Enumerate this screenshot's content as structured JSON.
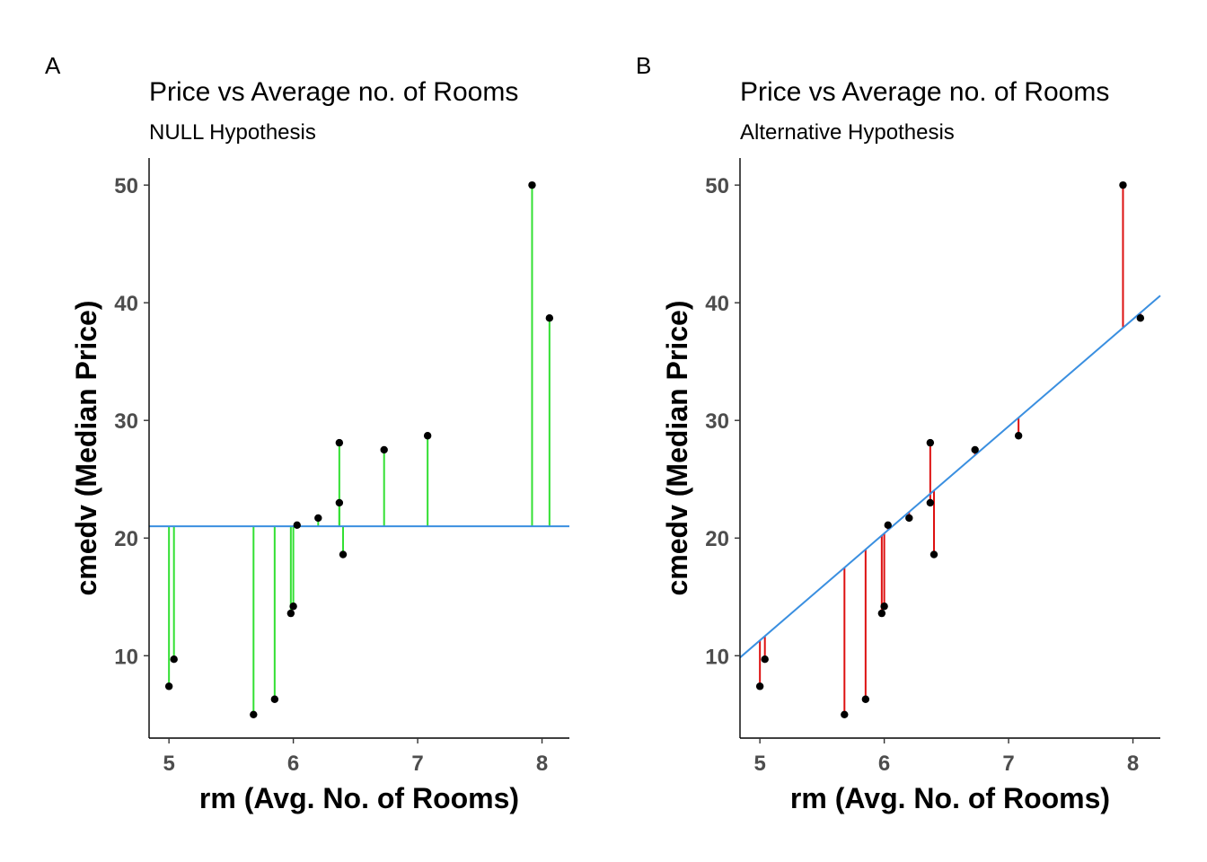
{
  "chart_data": [
    {
      "type": "scatter",
      "panel_tag": "A",
      "title": "Price vs Average no. of Rooms",
      "subtitle": "NULL Hypothesis",
      "xlabel": "rm (Avg. No. of Rooms)",
      "ylabel": "cmedv (Median Price)",
      "xlim": [
        4.84,
        8.22
      ],
      "ylim": [
        3.0,
        52.3
      ],
      "xticks": [
        5,
        6,
        7,
        8
      ],
      "yticks": [
        10,
        20,
        30,
        40,
        50
      ],
      "grid": false,
      "fit": {
        "type": "mean",
        "value": 21.0,
        "color": "#3a8fe0"
      },
      "residual_color": "#33e033",
      "point_color": "#000000",
      "points": [
        {
          "x": 5.0,
          "y": 7.4
        },
        {
          "x": 5.04,
          "y": 9.7
        },
        {
          "x": 5.68,
          "y": 5.0
        },
        {
          "x": 5.85,
          "y": 6.3
        },
        {
          "x": 5.98,
          "y": 13.6
        },
        {
          "x": 6.0,
          "y": 14.2
        },
        {
          "x": 6.03,
          "y": 21.1
        },
        {
          "x": 6.2,
          "y": 21.7
        },
        {
          "x": 6.37,
          "y": 28.1
        },
        {
          "x": 6.37,
          "y": 23.0
        },
        {
          "x": 6.4,
          "y": 18.6
        },
        {
          "x": 6.73,
          "y": 27.5
        },
        {
          "x": 7.08,
          "y": 28.7
        },
        {
          "x": 7.92,
          "y": 50.0
        },
        {
          "x": 8.06,
          "y": 38.7
        }
      ]
    },
    {
      "type": "scatter",
      "panel_tag": "B",
      "title": "Price vs Average no. of Rooms",
      "subtitle": "Alternative Hypothesis",
      "xlabel": "rm (Avg. No. of Rooms)",
      "ylabel": "cmedv (Median Price)",
      "xlim": [
        4.84,
        8.22
      ],
      "ylim": [
        3.0,
        52.3
      ],
      "xticks": [
        5,
        6,
        7,
        8
      ],
      "yticks": [
        10,
        20,
        30,
        40,
        50
      ],
      "grid": false,
      "fit": {
        "type": "linear",
        "intercept": -34.2,
        "slope": 9.1,
        "color": "#3a8fe0"
      },
      "residual_color": "#dd1111",
      "point_color": "#000000",
      "points": [
        {
          "x": 5.0,
          "y": 7.4
        },
        {
          "x": 5.04,
          "y": 9.7
        },
        {
          "x": 5.68,
          "y": 5.0
        },
        {
          "x": 5.85,
          "y": 6.3
        },
        {
          "x": 5.98,
          "y": 13.6
        },
        {
          "x": 6.0,
          "y": 14.2
        },
        {
          "x": 6.03,
          "y": 21.1
        },
        {
          "x": 6.2,
          "y": 21.7
        },
        {
          "x": 6.37,
          "y": 28.1
        },
        {
          "x": 6.37,
          "y": 23.0
        },
        {
          "x": 6.4,
          "y": 18.6
        },
        {
          "x": 6.73,
          "y": 27.5
        },
        {
          "x": 7.08,
          "y": 28.7
        },
        {
          "x": 7.92,
          "y": 50.0
        },
        {
          "x": 8.06,
          "y": 38.7
        }
      ]
    }
  ]
}
